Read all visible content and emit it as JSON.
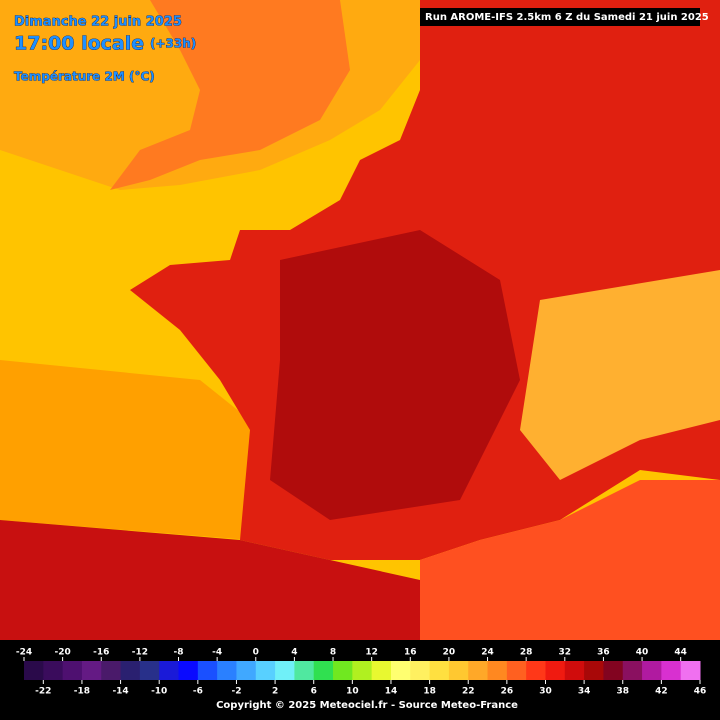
{
  "header": {
    "date": "Dimanche 22 juin 2025",
    "time": "17:00 locale",
    "offset": "(+33h)",
    "parameter": "Température 2M (°C)",
    "run": "Run AROME-IFS 2.5km 6 Z du Samedi 21 juin 2025"
  },
  "legend": {
    "ticks": [
      -24,
      -22,
      -20,
      -18,
      -16,
      -14,
      -12,
      -10,
      -8,
      -6,
      -4,
      -2,
      0,
      2,
      4,
      6,
      8,
      10,
      12,
      14,
      16,
      18,
      20,
      22,
      24,
      26,
      28,
      30,
      32,
      34,
      36,
      38,
      40,
      42,
      44,
      46
    ],
    "colors": [
      "#2a0a4a",
      "#3a0c5c",
      "#4e1070",
      "#641a84",
      "#4a1a6a",
      "#2a2070",
      "#28308a",
      "#1a1ad8",
      "#0a0aff",
      "#1a50ff",
      "#2a80ff",
      "#40a8ff",
      "#58d0ff",
      "#70f0f8",
      "#50e8a0",
      "#30e050",
      "#70e820",
      "#b0f020",
      "#e8f830",
      "#ffff70",
      "#fff060",
      "#ffe040",
      "#ffc830",
      "#ffa828",
      "#ff8820",
      "#ff6020",
      "#ff3818",
      "#f01a10",
      "#d00c0c",
      "#a80808",
      "#820420",
      "#8a1060",
      "#b01aa0",
      "#d830d0",
      "#f070f0"
    ]
  },
  "footer": {
    "copyright": "Copyright © 2025 Meteociel.fr - Source Meteo-France"
  }
}
